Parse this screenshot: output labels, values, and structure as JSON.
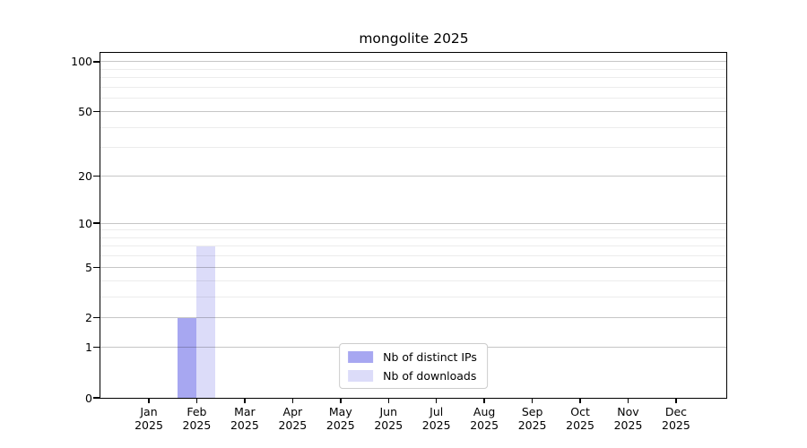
{
  "window": {
    "background": "#ffffff"
  },
  "chart_data": {
    "type": "bar",
    "title": "mongolite 2025",
    "x_months": [
      "Jan",
      "Feb",
      "Mar",
      "Apr",
      "May",
      "Jun",
      "Jul",
      "Aug",
      "Sep",
      "Oct",
      "Nov",
      "Dec"
    ],
    "x_year": "2025",
    "categories": [
      "Jan 2025",
      "Feb 2025",
      "Mar 2025",
      "Apr 2025",
      "May 2025",
      "Jun 2025",
      "Jul 2025",
      "Aug 2025",
      "Sep 2025",
      "Oct 2025",
      "Nov 2025",
      "Dec 2025"
    ],
    "series": [
      {
        "name": "Nb of distinct IPs",
        "color": "#a7a7f1",
        "values": [
          0,
          2,
          0,
          0,
          0,
          0,
          0,
          0,
          0,
          0,
          0,
          0
        ]
      },
      {
        "name": "Nb of downloads",
        "color": "#dcdcf9",
        "values": [
          0,
          7,
          0,
          0,
          0,
          0,
          0,
          0,
          0,
          0,
          0,
          0
        ]
      }
    ],
    "yscale": "log1p",
    "ylim": [
      0,
      113
    ],
    "yticks": [
      0,
      1,
      2,
      5,
      10,
      20,
      50,
      100
    ],
    "yticks_minor": [
      3,
      4,
      6,
      7,
      8,
      9,
      30,
      40,
      60,
      70,
      80,
      90
    ],
    "grid": true,
    "grid_major_color": "#c6c6c6",
    "grid_minor_color": "#ececec",
    "axis_color": "#000000",
    "legend_position": "lower center"
  }
}
